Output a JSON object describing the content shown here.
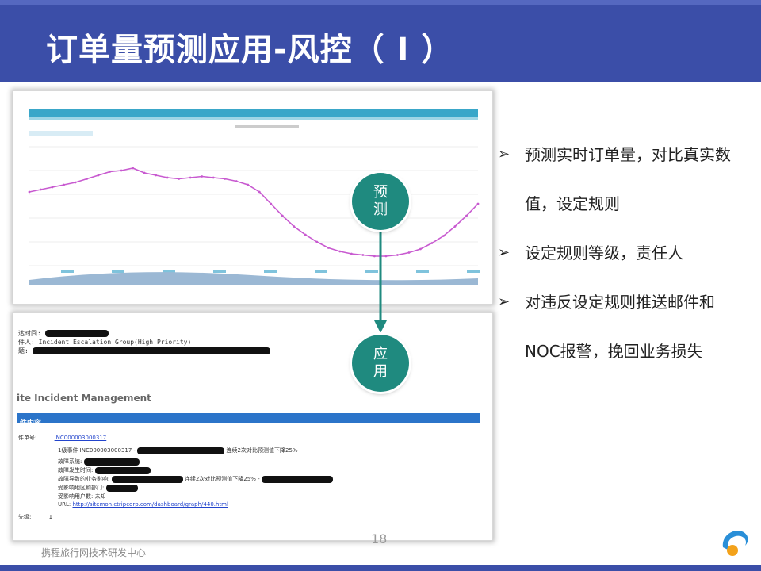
{
  "slide": {
    "title": "订单量预测应用-风控（ I ）",
    "footer": "携程旅行网技术研发中心",
    "page_number": "18"
  },
  "colors": {
    "title_bar": "#3b4ea8",
    "circle": "#1f8a7f",
    "chart_line": "#c85ad0",
    "incident_bar": "#2b74c9"
  },
  "flow": {
    "step1": [
      "预",
      "测"
    ],
    "step2": [
      "应",
      "用"
    ]
  },
  "bullets": [
    "预测实时订单量，对比真实数值，设定规则",
    "设定规则等级，责任人",
    "对违反设定规则推送邮件和NOC报警，挽回业务损失"
  ],
  "incident": {
    "heading": "ite Incident Management",
    "section_label": "件内容",
    "mail_line1": "达时间:",
    "mail_line2": "件人: Incident Escalation Group(High Priority)",
    "mail_line3": "题:",
    "ticket_label": "件单号:",
    "ticket_id": "INC000003000317",
    "summary_prefix": "1级事件 INC000003000317 -",
    "summary_suffix": "连续2次对比预测值下降25%",
    "field_a": "故障系统:",
    "field_b": "故障发生时间:",
    "field_c": "故障导致的业务影响:",
    "field_c_suffix": "连续2次对比预测值下降25% -",
    "field_d": "受影响地区和部门:",
    "field_e": "受影响用户数: 未知",
    "url_label": "URL:",
    "url": "http://sitemon.ctripcorp.com/dashboard/graph/440.html",
    "level_label": "先级:",
    "level_value": "1"
  },
  "chart_data": {
    "type": "line",
    "title": "",
    "series": [
      {
        "values": [
          0.62,
          0.64,
          0.66,
          0.68,
          0.7,
          0.73,
          0.76,
          0.79,
          0.8,
          0.82,
          0.78,
          0.76,
          0.74,
          0.73,
          0.74,
          0.75,
          0.74,
          0.73,
          0.71,
          0.68,
          0.62,
          0.52,
          0.42,
          0.33,
          0.26,
          0.2,
          0.15,
          0.12,
          0.1,
          0.09,
          0.08,
          0.08,
          0.09,
          0.11,
          0.14,
          0.19,
          0.25,
          0.33,
          0.42,
          0.52
        ]
      }
    ]
  }
}
